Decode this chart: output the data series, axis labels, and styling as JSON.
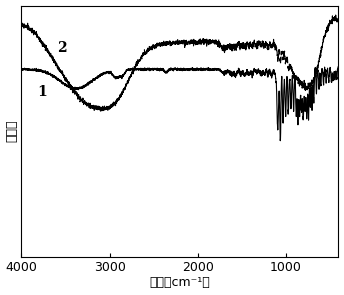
{
  "xlabel": "波数（cm⁻¹）",
  "ylabel": "透光率",
  "label1": "1",
  "label2": "2",
  "background_color": "#ffffff",
  "line_color": "#000000",
  "xlim_left": 4000,
  "xlim_right": 400,
  "xticks": [
    4000,
    3000,
    2000,
    1000
  ],
  "xtick_labels": [
    "4000",
    "3000",
    "2000",
    "1000"
  ]
}
